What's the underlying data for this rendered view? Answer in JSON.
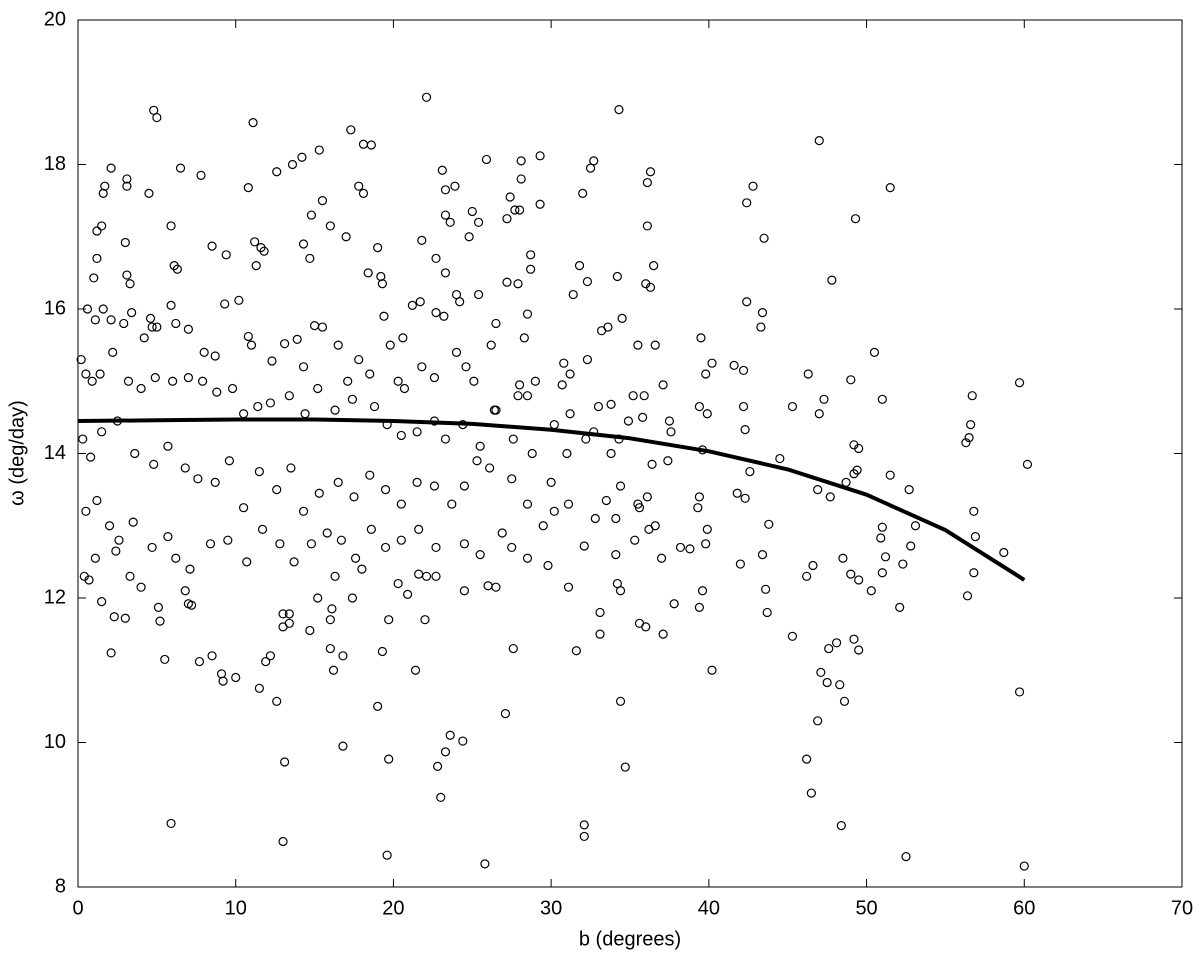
{
  "chart_data": {
    "type": "scatter",
    "xlabel": "b (degrees)",
    "ylabel": "ω (deg/day)",
    "xlim": [
      0,
      70
    ],
    "xticks": [
      0,
      10,
      20,
      30,
      40,
      50,
      60,
      70
    ],
    "ylim": [
      8,
      20
    ],
    "yticks": [
      8,
      10,
      12,
      14,
      16,
      18,
      20
    ],
    "color": "#000000",
    "x": [
      4.8,
      5.0,
      11.1,
      22.1,
      34.3,
      17.3,
      18.1,
      18.6,
      15.3,
      14.2,
      13.6,
      12.6,
      6.5,
      2.1,
      1.7,
      1.6,
      3.1,
      3.1,
      4.5,
      7.8,
      10.8,
      17.8,
      18.1,
      23.1,
      23.3,
      23.9,
      25.9,
      28.1,
      29.3,
      32.7,
      32.5,
      36.3,
      36.1,
      47.0,
      51.5,
      42.8,
      42.4,
      32.0,
      28.1,
      27.4,
      5.9,
      13.0,
      19.6,
      25.8,
      32.1,
      32.1,
      48.4,
      52.5,
      60.0,
      23.0,
      22.8,
      23.3,
      23.6,
      24.4,
      16.8,
      13.1,
      19.7,
      34.7,
      46.2,
      46.5,
      46.9,
      48.6,
      59.7,
      27.1,
      19.0,
      34.4,
      40.2,
      47.1,
      47.5,
      48.3,
      49.2,
      49.5,
      48.1,
      45.3,
      47.6,
      52.1,
      31.6,
      35.6,
      36.0,
      37.1,
      33.1,
      33.1,
      12.2,
      12.6,
      11.9,
      11.5,
      9.1,
      9.2,
      10.0,
      8.5,
      7.7,
      5.5,
      2.1,
      2.3,
      3.0,
      1.5,
      5.2,
      5.1,
      7.0,
      7.2,
      13.0,
      13.4,
      13.0,
      13.4,
      14.7,
      16.1,
      16.0,
      19.7,
      21.4,
      22.0,
      16.0,
      16.2,
      16.8,
      19.3,
      20.9,
      22.1,
      22.7,
      21.6,
      26.0,
      24.5,
      27.6,
      26.5,
      37.8,
      39.4,
      39.6,
      34.2,
      34.4,
      43.7,
      38.2,
      38.8,
      42.0,
      43.4,
      43.6,
      46.2,
      46.6,
      48.5,
      49.0,
      49.5,
      50.3,
      51.0,
      52.3,
      51.2,
      56.3,
      56.5,
      56.6,
      56.7,
      59.7,
      60.2,
      56.8,
      56.9,
      56.8,
      56.4,
      58.7,
      53.1,
      52.7,
      51.5,
      50.5,
      51.0,
      49.3,
      47.8,
      45.3,
      46.3,
      47.3,
      47.0,
      49.0,
      49.2,
      49.5,
      49.4,
      49.2,
      48.7,
      47.7,
      46.9,
      51.0,
      50.9,
      52.8,
      43.5,
      43.4,
      43.3,
      42.4,
      41.6,
      42.2,
      42.2,
      42.3,
      41.8,
      42.3,
      42.6,
      43.8,
      44.5,
      40.2,
      39.5,
      39.8,
      39.4,
      39.9,
      39.4,
      39.3,
      39.9,
      39.8,
      39.6,
      37.1,
      37.5,
      37.6,
      37.4,
      36.4,
      36.1,
      36.6,
      36.2,
      37.0,
      36.6,
      36.3,
      36.5,
      36.1,
      36.0,
      35.9,
      35.8,
      35.6,
      35.5,
      35.3,
      34.1,
      33.5,
      32.8,
      32.7,
      32.3,
      32.2,
      32.1,
      31.1,
      31.1,
      30.7,
      31.2,
      31.4,
      31.8,
      32.3,
      33.2,
      34.2,
      34.5,
      35.5,
      35.2,
      34.9,
      33.6,
      34.3,
      34.4,
      33.8,
      34.1,
      33.8,
      33.0,
      31.2,
      30.2,
      30.0,
      29.8,
      30.8,
      31.0,
      29.0,
      28.5,
      28.0,
      27.9,
      28.3,
      28.5,
      28.7,
      28.7,
      27.9,
      27.2,
      27.7,
      28.0,
      29.3,
      27.2,
      26.5,
      26.2,
      25.4,
      25.0,
      24.8,
      25.4,
      23.6,
      23.3,
      22.7,
      21.8,
      22.7,
      23.2,
      24.0,
      24.2,
      23.3,
      21.7,
      21.2,
      20.6,
      20.3,
      19.4,
      19.3,
      19.0,
      19.2,
      18.4,
      17.0,
      15.5,
      14.8,
      14.3,
      14.7,
      16.0,
      11.2,
      11.6,
      11.3,
      11.8,
      9.4,
      8.5,
      6.1,
      6.3,
      5.9,
      3.0,
      3.1,
      3.3,
      1.2,
      1.0,
      1.5,
      1.2,
      0.6,
      1.1,
      1.6,
      2.1,
      2.9,
      3.4,
      4.2,
      4.7,
      5.0,
      4.6,
      5.9,
      6.2,
      7.0,
      8.0,
      8.7,
      9.3,
      10.2,
      10.8,
      11.0,
      12.3,
      13.1,
      13.9,
      14.3,
      15.0,
      15.5,
      16.5,
      17.1,
      17.8,
      18.5,
      19.8,
      20.7,
      21.8,
      22.6,
      24.0,
      24.6,
      25.1,
      26.4,
      0.2,
      0.5,
      0.9,
      1.4,
      2.2,
      3.2,
      4.0,
      4.9,
      6.0,
      7.0,
      7.9,
      8.8,
      9.8,
      10.5,
      11.4,
      12.2,
      13.4,
      14.4,
      15.2,
      16.3,
      17.4,
      18.8,
      19.6,
      20.5,
      21.5,
      22.6,
      23.3,
      24.4,
      25.5,
      26.5,
      27.6,
      28.8,
      0.3,
      0.8,
      1.5,
      2.5,
      3.6,
      4.8,
      5.7,
      6.8,
      7.6,
      8.7,
      9.6,
      10.5,
      11.5,
      12.6,
      13.5,
      14.3,
      15.3,
      16.5,
      17.5,
      18.5,
      19.5,
      20.5,
      21.5,
      22.6,
      23.7,
      24.5,
      25.3,
      26.1,
      27.5,
      28.5,
      29.5,
      0.5,
      1.2,
      2.0,
      2.6,
      3.5,
      4.7,
      5.7,
      6.2,
      7.1,
      8.4,
      9.5,
      10.7,
      11.7,
      12.8,
      13.7,
      14.8,
      15.8,
      16.7,
      17.6,
      18.6,
      19.5,
      20.5,
      21.6,
      22.7,
      24.5,
      25.5,
      26.9,
      27.5,
      28.5,
      0.4,
      0.7,
      1.1,
      2.4,
      3.3,
      4.0,
      6.8,
      15.2,
      17.4,
      18.0,
      16.3,
      20.3,
      30.2
    ],
    "y": [
      18.75,
      18.65,
      18.58,
      18.93,
      18.76,
      18.48,
      18.28,
      18.27,
      18.2,
      18.1,
      18.0,
      17.9,
      17.95,
      17.95,
      17.7,
      17.6,
      17.8,
      17.7,
      17.6,
      17.85,
      17.68,
      17.7,
      17.6,
      17.92,
      17.65,
      17.7,
      18.07,
      18.05,
      18.12,
      18.05,
      17.95,
      17.9,
      17.75,
      18.33,
      17.68,
      17.7,
      17.47,
      17.6,
      17.8,
      17.55,
      8.88,
      8.63,
      8.44,
      8.32,
      8.86,
      8.7,
      8.85,
      8.42,
      8.29,
      9.24,
      9.67,
      9.87,
      10.1,
      10.02,
      9.95,
      9.73,
      9.77,
      9.66,
      9.77,
      9.3,
      10.3,
      10.57,
      10.7,
      10.4,
      10.5,
      10.57,
      11.0,
      10.97,
      10.83,
      10.8,
      11.43,
      11.28,
      11.38,
      11.47,
      11.3,
      11.87,
      11.27,
      11.65,
      11.6,
      11.5,
      11.5,
      11.8,
      11.2,
      10.57,
      11.12,
      10.75,
      10.95,
      10.85,
      10.9,
      11.2,
      11.12,
      11.15,
      11.24,
      11.74,
      11.72,
      11.95,
      11.68,
      11.87,
      11.92,
      11.9,
      11.78,
      11.78,
      11.6,
      11.65,
      11.55,
      11.85,
      11.7,
      11.7,
      11.0,
      11.7,
      11.3,
      11.0,
      11.2,
      11.26,
      12.05,
      12.3,
      12.3,
      12.33,
      12.17,
      12.1,
      11.3,
      12.15,
      11.92,
      11.87,
      12.1,
      12.2,
      12.1,
      11.8,
      12.7,
      12.68,
      12.47,
      12.6,
      12.12,
      12.3,
      12.45,
      12.55,
      12.33,
      12.25,
      12.1,
      12.35,
      12.47,
      12.57,
      14.15,
      14.22,
      14.4,
      14.8,
      14.98,
      13.85,
      13.2,
      12.85,
      12.35,
      12.03,
      12.63,
      13.0,
      13.5,
      13.7,
      15.4,
      14.75,
      17.25,
      16.4,
      14.65,
      15.1,
      14.75,
      14.55,
      15.02,
      14.12,
      14.07,
      13.77,
      13.72,
      13.6,
      13.4,
      13.5,
      12.98,
      12.83,
      12.72,
      16.98,
      15.95,
      15.75,
      16.1,
      15.22,
      15.15,
      14.65,
      14.33,
      13.45,
      13.38,
      13.75,
      13.02,
      13.93,
      15.25,
      15.6,
      15.1,
      14.65,
      14.55,
      13.4,
      13.25,
      12.95,
      12.75,
      14.05,
      14.95,
      14.45,
      14.3,
      13.9,
      13.85,
      13.4,
      13.0,
      12.95,
      12.55,
      15.5,
      16.3,
      16.6,
      17.15,
      16.35,
      14.8,
      14.5,
      13.25,
      13.3,
      12.8,
      12.6,
      13.35,
      13.1,
      14.3,
      15.3,
      14.2,
      12.72,
      13.3,
      12.15,
      14.95,
      15.1,
      16.2,
      16.6,
      16.38,
      15.7,
      16.45,
      15.87,
      15.5,
      14.8,
      14.45,
      15.75,
      14.2,
      13.55,
      14.0,
      13.1,
      14.68,
      14.65,
      14.55,
      14.4,
      13.6,
      12.45,
      15.25,
      14.0,
      15.0,
      14.8,
      14.95,
      14.8,
      15.6,
      15.93,
      16.55,
      16.75,
      16.35,
      16.37,
      17.37,
      17.37,
      17.45,
      17.25,
      15.8,
      15.5,
      16.2,
      17.35,
      17.0,
      17.2,
      17.2,
      17.3,
      16.7,
      16.95,
      15.95,
      15.9,
      16.2,
      16.1,
      16.5,
      16.1,
      16.05,
      15.6,
      15.0,
      15.9,
      16.35,
      16.85,
      16.45,
      16.5,
      17.0,
      17.5,
      17.3,
      16.9,
      16.7,
      17.15,
      16.93,
      16.85,
      16.6,
      16.8,
      16.75,
      16.87,
      16.6,
      16.55,
      17.15,
      16.92,
      16.47,
      16.35,
      16.7,
      16.43,
      17.15,
      17.08,
      16.0,
      15.85,
      16.0,
      15.85,
      15.8,
      15.95,
      15.6,
      15.75,
      15.75,
      15.87,
      16.05,
      15.8,
      15.72,
      15.4,
      15.35,
      16.07,
      16.12,
      15.62,
      15.5,
      15.28,
      15.52,
      15.58,
      15.2,
      15.77,
      15.75,
      15.5,
      15.0,
      15.3,
      15.1,
      15.5,
      14.9,
      15.2,
      15.05,
      15.4,
      15.2,
      15.0,
      14.6,
      15.3,
      15.1,
      15.0,
      15.1,
      15.4,
      15.0,
      14.9,
      15.05,
      15.0,
      15.05,
      15.0,
      14.85,
      14.9,
      14.55,
      14.65,
      14.7,
      14.8,
      14.55,
      14.9,
      14.6,
      14.75,
      14.65,
      14.4,
      14.25,
      14.3,
      14.45,
      14.2,
      14.4,
      14.1,
      14.6,
      14.2,
      14.0,
      14.2,
      13.95,
      14.3,
      14.45,
      14.0,
      13.85,
      14.1,
      13.8,
      13.65,
      13.6,
      13.9,
      13.25,
      13.75,
      13.5,
      13.8,
      13.2,
      13.45,
      13.6,
      13.4,
      13.7,
      13.5,
      13.3,
      13.6,
      13.55,
      13.3,
      13.55,
      13.9,
      13.8,
      13.65,
      13.3,
      13.0,
      13.2,
      13.35,
      13.0,
      12.8,
      13.05,
      12.7,
      12.85,
      12.55,
      12.4,
      12.75,
      12.8,
      12.5,
      12.95,
      12.75,
      12.5,
      12.75,
      12.9,
      12.8,
      12.55,
      12.95,
      12.7,
      12.8,
      12.95,
      12.7,
      12.75,
      12.6,
      12.9,
      12.7,
      12.55,
      12.3,
      12.25,
      12.55,
      12.65,
      12.3,
      12.15,
      12.1,
      12.0,
      12.0,
      12.4,
      12.3,
      12.2,
      13.2
    ],
    "fit": {
      "color": "#000000",
      "x": [
        0,
        5,
        10,
        15,
        20,
        25,
        30,
        35,
        40,
        45,
        50,
        55,
        60
      ],
      "y": [
        14.45,
        14.46,
        14.47,
        14.47,
        14.45,
        14.41,
        14.33,
        14.21,
        14.03,
        13.78,
        13.43,
        12.94,
        12.25
      ]
    }
  }
}
